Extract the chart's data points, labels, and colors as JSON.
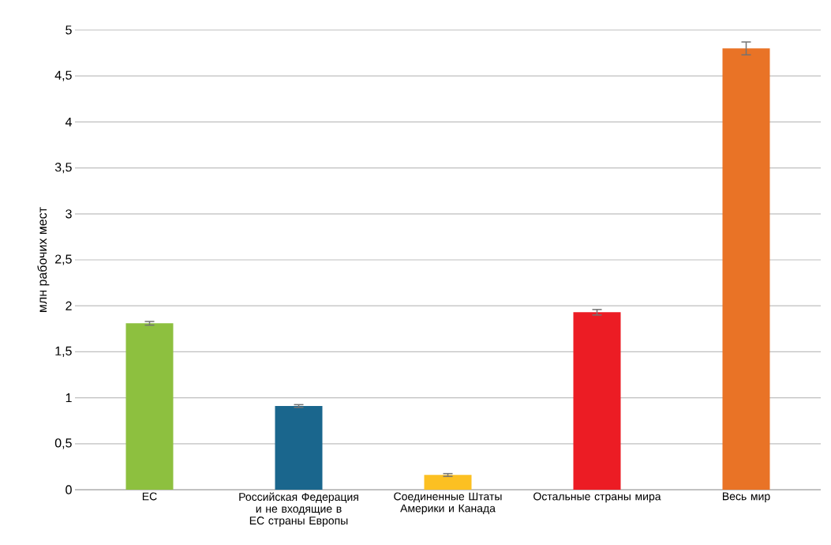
{
  "chart_data": {
    "type": "bar",
    "ylabel": "млн рабочих мест",
    "categories": [
      "ЕС",
      "Российская Федерация и не входящие в ЕС страны Европы",
      "Соединенные Штаты Америки и Канада",
      "Остальные страны мира",
      "Весь мир"
    ],
    "values": [
      1.81,
      0.91,
      0.16,
      1.93,
      4.8
    ],
    "errors": [
      0.02,
      0.015,
      0.015,
      0.03,
      0.07
    ],
    "colors": [
      "#8dc03f",
      "#1a668d",
      "#fcc022",
      "#ec1c24",
      "#e97326"
    ],
    "ylim": [
      0,
      5
    ],
    "yticks": [
      0,
      {
        "value": 0.5,
        "label": "0,5"
      },
      1,
      {
        "value": 1.5,
        "label": "1,5"
      },
      2,
      {
        "value": 2.5,
        "label": "2,5"
      },
      3,
      {
        "value": 3.5,
        "label": "3,5"
      },
      4,
      {
        "value": 4.5,
        "label": "4,5"
      },
      5
    ],
    "grid": "y"
  }
}
